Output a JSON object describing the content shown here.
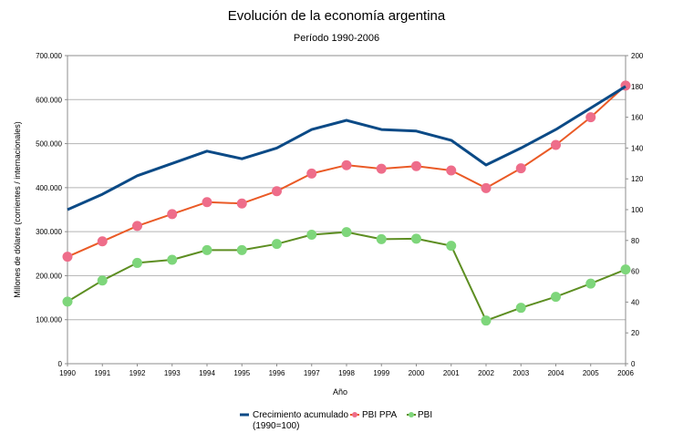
{
  "chart_data": {
    "type": "line",
    "title": "Evolución de la economía argentina",
    "subtitle": "Período 1990-2006",
    "xlabel": "Año",
    "ylabel": "Millones de dólares (corrientes / internacionales)",
    "ylim": [
      0,
      700000
    ],
    "y2lim": [
      0,
      200
    ],
    "yticks": [
      "0",
      "100.000",
      "200.000",
      "300.000",
      "400.000",
      "500.000",
      "600.000",
      "700.000"
    ],
    "y2ticks": [
      "0",
      "20",
      "40",
      "60",
      "80",
      "100",
      "120",
      "140",
      "160",
      "180",
      "200"
    ],
    "grid": true,
    "legend_position": "bottom",
    "x": [
      "1990",
      "1991",
      "1992",
      "1993",
      "1994",
      "1995",
      "1996",
      "1997",
      "1998",
      "1999",
      "2000",
      "2001",
      "2002",
      "2003",
      "2004",
      "2005",
      "2006"
    ],
    "series": [
      {
        "name": "Crecimiento acumulado",
        "name_line2": "(1990=100)",
        "axis": "right",
        "color": "#0b4a86",
        "marker": "none",
        "values": [
          100,
          110,
          122,
          130,
          138,
          133,
          140,
          152,
          158,
          152,
          151,
          145,
          129,
          140,
          152,
          166,
          180
        ]
      },
      {
        "name": "PBI PPA",
        "axis": "left",
        "color": "#ea5a26",
        "marker_color": "#ee6d8a",
        "values": [
          243000,
          278000,
          313000,
          340000,
          367000,
          364000,
          392000,
          432000,
          451000,
          443000,
          449000,
          439000,
          399000,
          444000,
          497000,
          560000,
          632000
        ]
      },
      {
        "name": "PBI",
        "axis": "left",
        "color": "#5d8e22",
        "marker_color": "#7ed67b",
        "values": [
          141000,
          189000,
          229000,
          236000,
          258000,
          258000,
          272000,
          293000,
          299000,
          283000,
          284000,
          268000,
          98000,
          127000,
          152000,
          182000,
          214000
        ]
      }
    ]
  }
}
